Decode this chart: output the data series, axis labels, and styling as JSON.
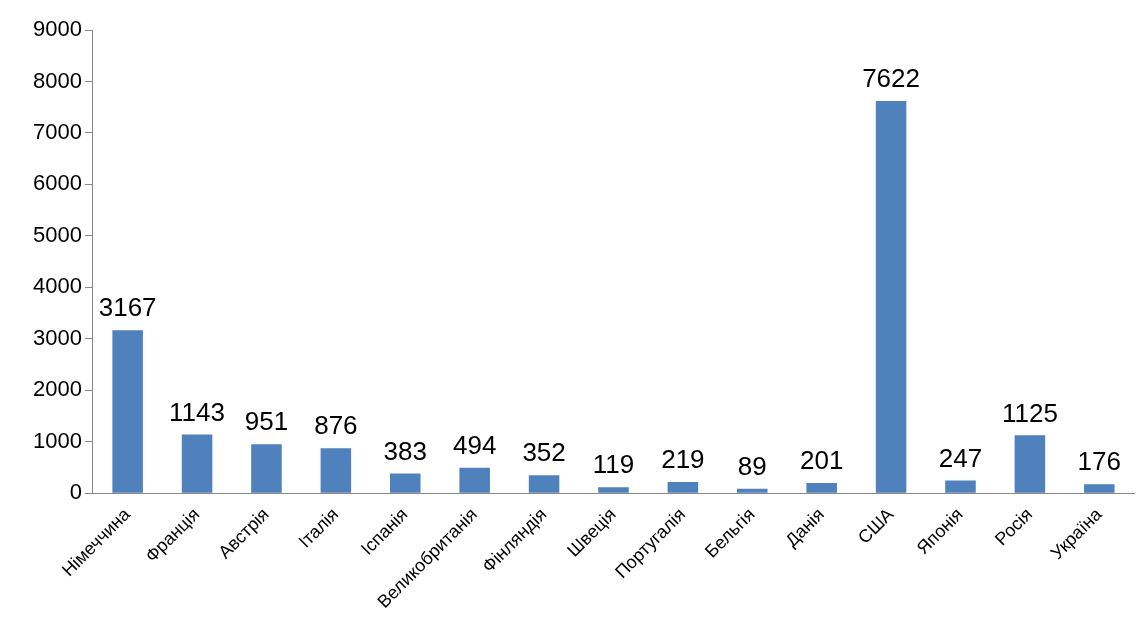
{
  "chart_data": {
    "type": "bar",
    "categories": [
      "Німеччина",
      "Франція",
      "Австрія",
      "Італія",
      "Іспанія",
      "Великобританія",
      "Фінляндія",
      "Швеція",
      "Португалія",
      "Бельгія",
      "Данія",
      "США",
      "Японія",
      "Росія",
      "Україна"
    ],
    "values": [
      3167,
      1143,
      951,
      876,
      383,
      494,
      352,
      119,
      219,
      89,
      201,
      7622,
      247,
      1125,
      176
    ],
    "color": "#4f81bd",
    "ylim": [
      0,
      9000
    ],
    "yticks": [
      0,
      1000,
      2000,
      3000,
      4000,
      5000,
      6000,
      7000,
      8000,
      9000
    ],
    "grid": false,
    "legend": false,
    "data_labels": true
  }
}
